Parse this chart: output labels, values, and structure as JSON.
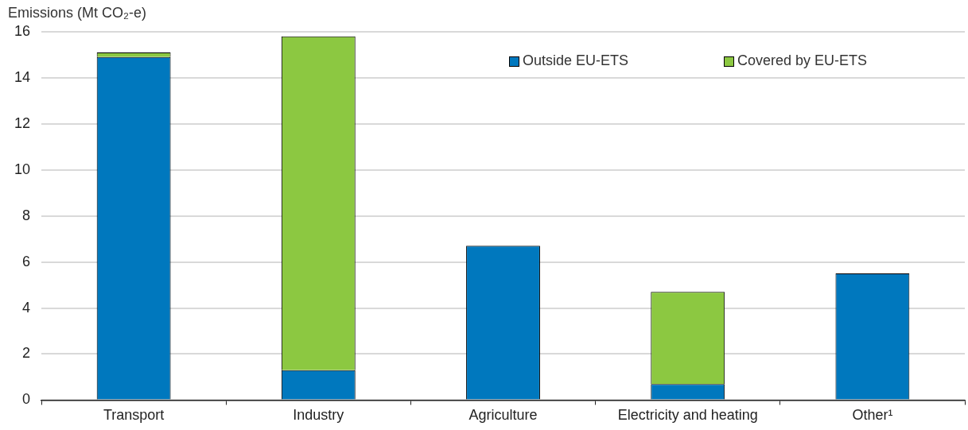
{
  "chart_data": {
    "type": "bar",
    "ylabel": "Emissions (Mt CO₂-e)",
    "categories": [
      "Transport",
      "Industry",
      "Agriculture",
      "Electricity and heating",
      "Other¹"
    ],
    "series": [
      {
        "name": "Outside EU-ETS",
        "color": "#0078be",
        "values": [
          14.9,
          1.3,
          6.7,
          0.7,
          5.5
        ]
      },
      {
        "name": "Covered by EU-ETS",
        "color": "#8cc841",
        "values": [
          0.2,
          14.5,
          null,
          4.0,
          null
        ]
      }
    ],
    "stacked": true,
    "ylim": [
      0,
      16
    ],
    "yticks": [
      0,
      2,
      4,
      6,
      8,
      10,
      12,
      14,
      16
    ],
    "grid": "y",
    "legend": "top right"
  }
}
